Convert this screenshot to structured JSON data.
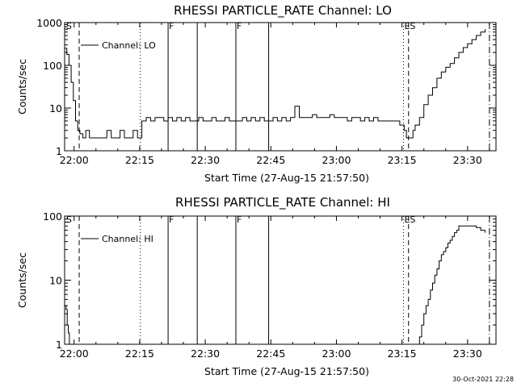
{
  "timestamp": "30-Oct-2021 22:28",
  "chart_data": [
    {
      "type": "line",
      "title": "RHESSI PARTICLE_RATE Channel: LO",
      "xlabel": "Start Time (27-Aug-15 21:57:50)",
      "ylabel": "Counts/sec",
      "yscale": "log",
      "xlim": [
        "21:57:50",
        "23:36:30"
      ],
      "ylim": [
        1,
        1000
      ],
      "xticks": [
        "22:00",
        "22:15",
        "22:30",
        "22:45",
        "23:00",
        "23:15",
        "23:30"
      ],
      "yticks": [
        "1",
        "10",
        "100",
        "1000"
      ],
      "legend": "Channel: LO",
      "series": [
        {
          "name": "Channel: LO",
          "x": [
            "21:57:50",
            "21:58:20",
            "21:58:50",
            "21:59:20",
            "21:59:50",
            "22:00:20",
            "22:00:50",
            "22:01:20",
            "22:02:00",
            "22:02:40",
            "22:03:30",
            "22:04:30",
            "22:05:30",
            "22:06:30",
            "22:07:30",
            "22:08:30",
            "22:09:30",
            "22:10:30",
            "22:11:30",
            "22:12:30",
            "22:13:30",
            "22:14:30",
            "22:15:30",
            "22:16:30",
            "22:17:30",
            "22:18:30",
            "22:19:30",
            "22:20:30",
            "22:21:30",
            "22:22:30",
            "22:23:30",
            "22:24:30",
            "22:25:30",
            "22:26:30",
            "22:27:30",
            "22:28:30",
            "22:29:30",
            "22:30:30",
            "22:31:30",
            "22:32:30",
            "22:33:30",
            "22:34:30",
            "22:35:30",
            "22:36:30",
            "22:37:30",
            "22:38:30",
            "22:39:30",
            "22:40:30",
            "22:41:30",
            "22:42:30",
            "22:43:30",
            "22:44:30",
            "22:45:30",
            "22:46:30",
            "22:47:30",
            "22:48:30",
            "22:49:30",
            "22:50:30",
            "22:51:30",
            "22:52:30",
            "22:53:30",
            "22:54:30",
            "22:55:30",
            "22:56:30",
            "22:57:30",
            "22:58:30",
            "22:59:30",
            "23:00:30",
            "23:01:30",
            "23:02:30",
            "23:03:30",
            "23:04:30",
            "23:05:30",
            "23:06:30",
            "23:07:30",
            "23:08:30",
            "23:09:30",
            "23:10:30",
            "23:11:30",
            "23:12:30",
            "23:13:30",
            "23:14:00",
            "23:14:30",
            "23:15:00",
            "23:15:30",
            "23:16:00",
            "23:16:30",
            "23:17:00",
            "23:17:30",
            "23:18:00",
            "23:19:00",
            "23:20:00",
            "23:21:00",
            "23:22:00",
            "23:23:00",
            "23:24:00",
            "23:25:00",
            "23:26:00",
            "23:27:00",
            "23:28:00",
            "23:29:00",
            "23:30:00",
            "23:31:00",
            "23:32:00",
            "23:33:00",
            "23:34:00"
          ],
          "values": [
            250,
            180,
            100,
            40,
            15,
            5,
            3,
            2.5,
            2,
            3,
            2,
            2,
            2,
            2,
            3,
            2,
            2,
            3,
            2,
            2,
            3,
            2,
            5,
            6,
            5,
            6,
            6,
            5,
            6,
            5,
            6,
            5,
            6,
            5,
            5,
            6,
            5,
            5,
            6,
            5,
            5,
            6,
            5,
            5,
            5,
            6,
            5,
            6,
            5,
            6,
            5,
            5,
            6,
            5,
            6,
            5,
            6,
            11,
            6,
            6,
            6,
            7,
            6,
            6,
            6,
            7,
            6,
            6,
            6,
            5,
            6,
            6,
            5,
            6,
            5,
            6,
            5,
            5,
            5,
            5,
            5,
            5,
            4,
            4,
            3,
            2,
            2,
            2,
            3,
            4,
            6,
            12,
            20,
            30,
            50,
            70,
            90,
            110,
            150,
            200,
            260,
            320,
            400,
            500,
            600,
            700
          ]
        }
      ],
      "vlines": [
        {
          "time": "22:01:10",
          "style": "dashed"
        },
        {
          "time": "22:15:10",
          "style": "dotted"
        },
        {
          "time": "22:21:30",
          "style": "solid"
        },
        {
          "time": "22:28:10",
          "style": "solid"
        },
        {
          "time": "22:37:00",
          "style": "solid"
        },
        {
          "time": "22:44:30",
          "style": "solid"
        },
        {
          "time": "23:15:20",
          "style": "dotted"
        },
        {
          "time": "23:16:30",
          "style": "dashed"
        },
        {
          "time": "23:35:00",
          "style": "dashdot"
        }
      ],
      "markers": [
        {
          "label": "S",
          "time": "21:58:00"
        },
        {
          "label": "F",
          "time": "22:21:30"
        },
        {
          "label": "F",
          "time": "22:37:00"
        },
        {
          "label": "ES",
          "time": "23:15:20"
        }
      ]
    },
    {
      "type": "line",
      "title": "RHESSI PARTICLE_RATE Channel: HI",
      "xlabel": "Start Time (27-Aug-15 21:57:50)",
      "ylabel": "Counts/sec",
      "yscale": "log",
      "xlim": [
        "21:57:50",
        "23:36:30"
      ],
      "ylim": [
        1,
        100
      ],
      "xticks": [
        "22:00",
        "22:15",
        "22:30",
        "22:45",
        "23:00",
        "23:15",
        "23:30"
      ],
      "yticks": [
        "1",
        "10",
        "100"
      ],
      "legend": "Channel: HI",
      "series": [
        {
          "name": "Channel: HI",
          "x": [
            "21:57:55",
            "21:58:10",
            "21:58:25",
            "21:58:40",
            "21:58:55",
            "23:18:30",
            "23:19:00",
            "23:19:30",
            "23:20:00",
            "23:20:30",
            "23:21:00",
            "23:21:30",
            "23:22:00",
            "23:22:30",
            "23:23:00",
            "23:23:30",
            "23:24:00",
            "23:24:30",
            "23:25:00",
            "23:25:30",
            "23:26:00",
            "23:26:30",
            "23:27:00",
            "23:27:30",
            "23:28:00",
            "23:29:00",
            "23:30:00",
            "23:31:00",
            "23:32:00",
            "23:33:00",
            "23:34:00"
          ],
          "values": [
            4,
            3.5,
            2,
            1.5,
            1,
            1,
            1.3,
            2,
            3,
            4,
            5,
            7,
            9,
            12,
            15,
            20,
            25,
            28,
            32,
            38,
            42,
            48,
            55,
            60,
            70,
            70,
            70,
            70,
            66,
            60,
            55
          ]
        }
      ],
      "vlines": [
        {
          "time": "22:01:10",
          "style": "dashed"
        },
        {
          "time": "22:15:10",
          "style": "dotted"
        },
        {
          "time": "22:21:30",
          "style": "solid"
        },
        {
          "time": "22:28:10",
          "style": "solid"
        },
        {
          "time": "22:37:00",
          "style": "solid"
        },
        {
          "time": "22:44:30",
          "style": "solid"
        },
        {
          "time": "23:15:20",
          "style": "dotted"
        },
        {
          "time": "23:16:30",
          "style": "dashed"
        },
        {
          "time": "23:35:00",
          "style": "dashdot"
        }
      ],
      "markers": [
        {
          "label": "S",
          "time": "21:58:00"
        },
        {
          "label": "F",
          "time": "22:21:30"
        },
        {
          "label": "F",
          "time": "22:37:00"
        },
        {
          "label": "ES",
          "time": "23:15:20"
        }
      ]
    }
  ]
}
